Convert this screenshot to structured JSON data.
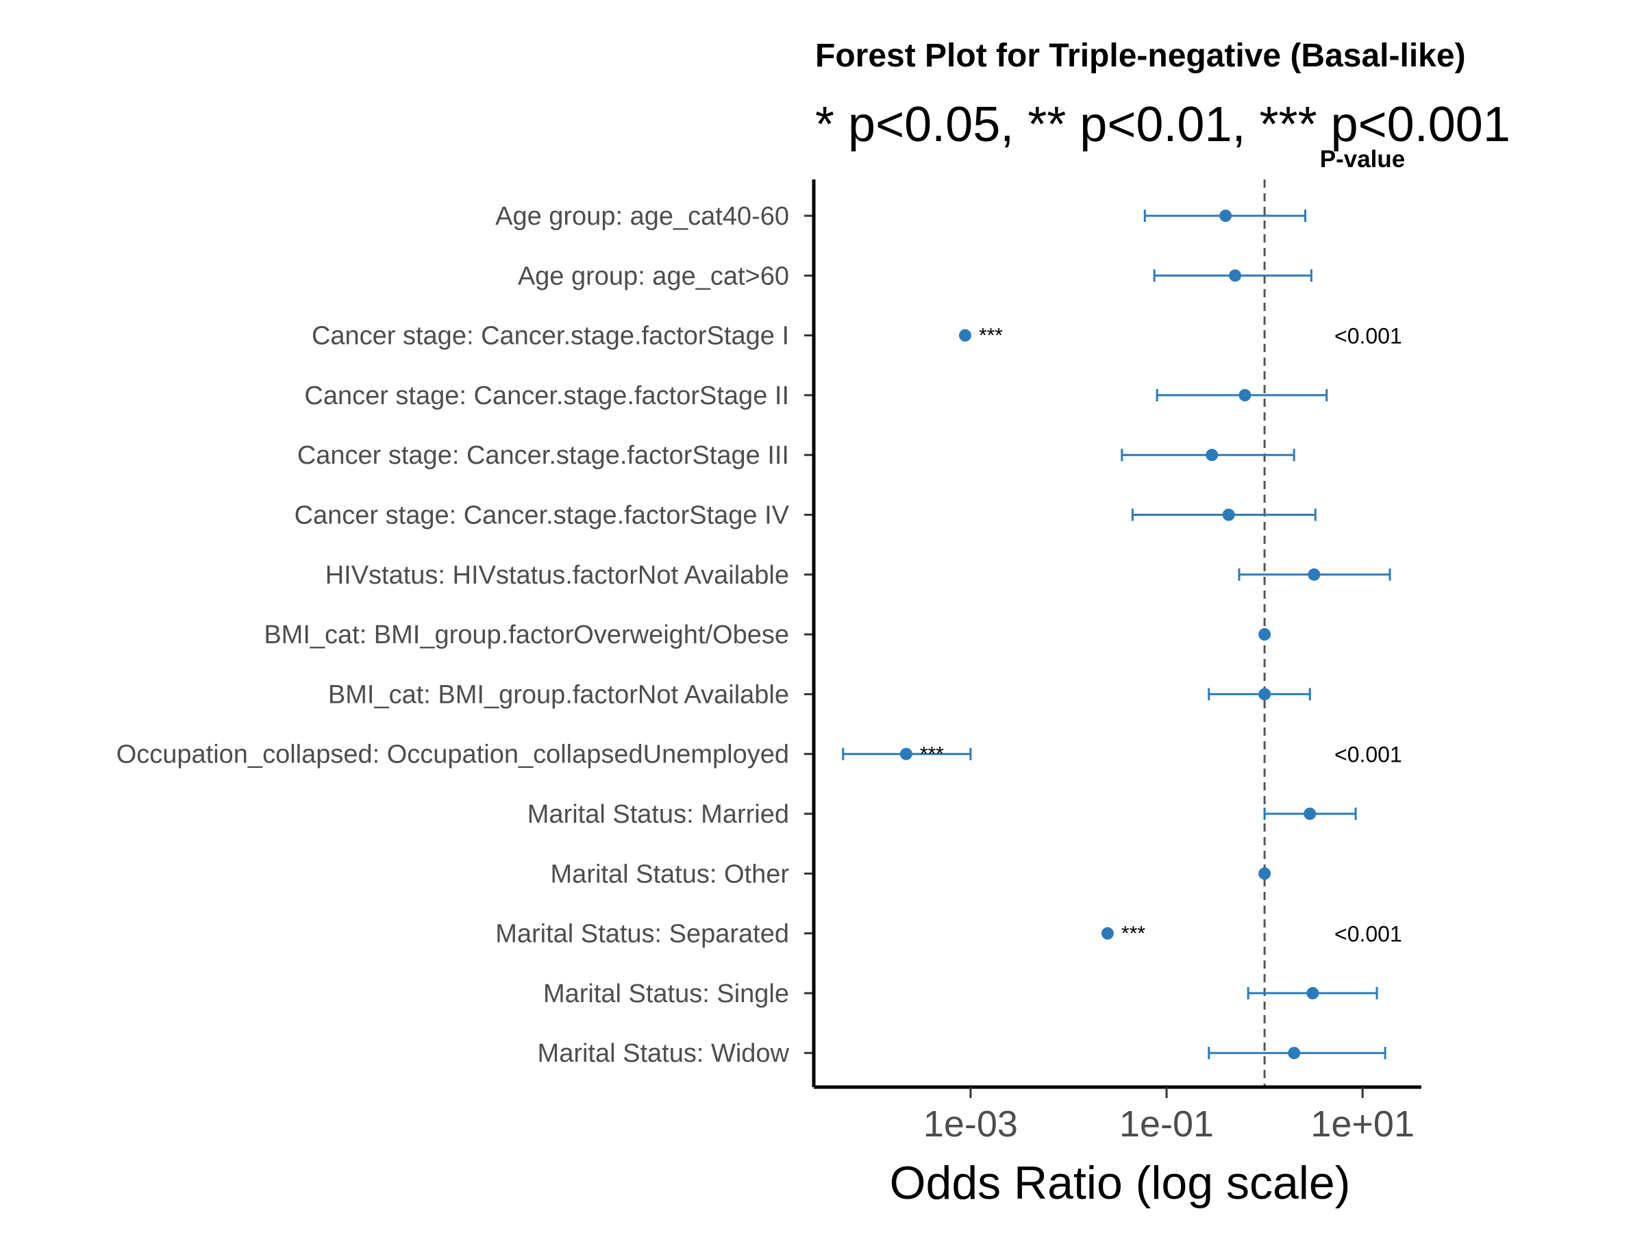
{
  "chart_data": {
    "type": "forest",
    "title": "Forest Plot for Triple-negative (Basal-like)",
    "subtitle": "* p<0.05, ** p<0.01, *** p<0.001",
    "xlabel": "Odds Ratio (log scale)",
    "pvalue_header": "P-value",
    "x_scale": "log10",
    "xlim_log10": [
      -4.6,
      1.6
    ],
    "xticks": [
      {
        "value": 0.001,
        "label": "1e-03"
      },
      {
        "value": 0.1,
        "label": "1e-01"
      },
      {
        "value": 10,
        "label": "1e+01"
      }
    ],
    "reference_line": 1,
    "color": "#2b7bba",
    "rows": [
      {
        "label": "Age group: age_cat40-60",
        "or": 0.4,
        "lo": 0.06,
        "hi": 2.6,
        "sig": "",
        "p": ""
      },
      {
        "label": "Age group: age_cat>60",
        "or": 0.5,
        "lo": 0.075,
        "hi": 3.0,
        "sig": "",
        "p": ""
      },
      {
        "label": "Cancer stage: Cancer.stage.factorStage I",
        "or": 0.00088,
        "lo": 0.00086,
        "hi": 0.0009,
        "sig": "***",
        "p": "<0.001"
      },
      {
        "label": "Cancer stage: Cancer.stage.factorStage II",
        "or": 0.63,
        "lo": 0.08,
        "hi": 4.3,
        "sig": "",
        "p": ""
      },
      {
        "label": "Cancer stage: Cancer.stage.factorStage III",
        "or": 0.29,
        "lo": 0.035,
        "hi": 2.0,
        "sig": "",
        "p": ""
      },
      {
        "label": "Cancer stage: Cancer.stage.factorStage IV",
        "or": 0.43,
        "lo": 0.045,
        "hi": 3.3,
        "sig": "",
        "p": ""
      },
      {
        "label": "HIVstatus: HIVstatus.factorNot Available",
        "or": 3.2,
        "lo": 0.55,
        "hi": 19,
        "sig": "",
        "p": ""
      },
      {
        "label": "BMI_cat: BMI_group.factorOverweight/Obese",
        "or": 1.0,
        "lo": 0.98,
        "hi": 1.02,
        "sig": "",
        "p": ""
      },
      {
        "label": "BMI_cat: BMI_group.factorNot Available",
        "or": 1.0,
        "lo": 0.27,
        "hi": 2.9,
        "sig": "",
        "p": ""
      },
      {
        "label": "Occupation_collapsed: Occupation_collapsedUnemployed",
        "or": 0.00022,
        "lo": 5e-05,
        "hi": 0.001,
        "sig": "***",
        "p": "<0.001"
      },
      {
        "label": "Marital Status: Married",
        "or": 2.9,
        "lo": 1.0,
        "hi": 8.5,
        "sig": "",
        "p": ""
      },
      {
        "label": "Marital Status: Other",
        "or": 1.0,
        "lo": 0.98,
        "hi": 1.02,
        "sig": "",
        "p": ""
      },
      {
        "label": "Marital Status: Separated",
        "or": 0.025,
        "lo": 0.0245,
        "hi": 0.0255,
        "sig": "***",
        "p": "<0.001"
      },
      {
        "label": "Marital Status: Single",
        "or": 3.1,
        "lo": 0.68,
        "hi": 14,
        "sig": "",
        "p": ""
      },
      {
        "label": "Marital Status: Widow",
        "or": 2.0,
        "lo": 0.27,
        "hi": 17,
        "sig": "",
        "p": ""
      }
    ]
  }
}
